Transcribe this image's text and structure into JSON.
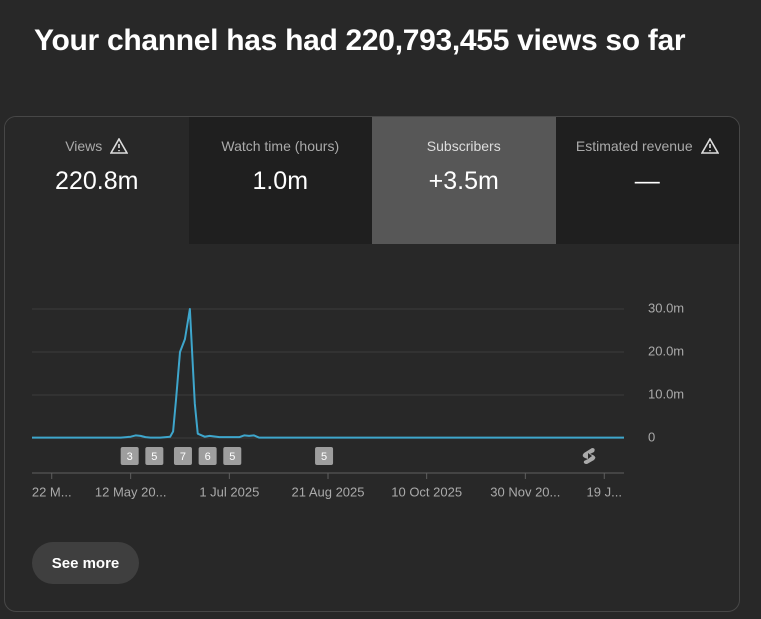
{
  "header": {
    "title": "Your channel has had 220,793,455 views so far"
  },
  "tabs": [
    {
      "label": "Views",
      "value": "220.8m"
    },
    {
      "label": "Watch time (hours)",
      "value": "1.0m"
    },
    {
      "label": "Subscribers",
      "value": "+3.5m"
    },
    {
      "label": "Estimated revenue",
      "value": "—"
    }
  ],
  "chart_data": {
    "type": "line",
    "x": [
      0,
      1,
      2,
      3,
      4,
      5,
      6,
      7,
      8,
      9,
      10,
      10.5,
      11,
      11.5,
      12,
      13,
      14,
      14.3,
      14.6,
      15,
      15.5,
      16,
      16.5,
      16.8,
      17.5,
      18,
      19,
      20,
      21,
      21.5,
      22,
      22.5,
      23,
      24,
      25,
      26,
      27,
      28,
      29,
      30,
      31,
      32,
      33,
      34,
      35,
      36,
      37,
      38,
      39,
      40,
      41,
      42,
      43,
      44,
      45,
      46,
      47,
      48,
      49,
      50,
      51,
      52,
      53,
      54,
      55,
      56,
      57,
      58,
      59,
      60
    ],
    "series": [
      {
        "color": "#3ea6cc",
        "values": [
          0.1,
          0.1,
          0.1,
          0.1,
          0.1,
          0.1,
          0.1,
          0.1,
          0.1,
          0.1,
          0.3,
          0.6,
          0.5,
          0.2,
          0.1,
          0.1,
          0.3,
          1.5,
          9,
          20,
          23,
          30,
          8,
          1,
          0.3,
          0.5,
          0.2,
          0.2,
          0.2,
          0.6,
          0.5,
          0.6,
          0.1,
          0.1,
          0.1,
          0.1,
          0.1,
          0.1,
          0.1,
          0.1,
          0.1,
          0.1,
          0.1,
          0.1,
          0.1,
          0.1,
          0.1,
          0.1,
          0.1,
          0.1,
          0.1,
          0.1,
          0.1,
          0.1,
          0.1,
          0.1,
          0.1,
          0.1,
          0.1,
          0.1,
          0.1,
          0.1,
          0.1,
          0.1,
          0.1,
          0.1,
          0.1,
          0.1,
          0.1,
          0.1
        ]
      }
    ],
    "xlim": [
      0,
      60
    ],
    "xticks": [
      {
        "value": 2,
        "label": "22 M..."
      },
      {
        "value": 10,
        "label": "12 May 20..."
      },
      {
        "value": 20,
        "label": "1 Jul 2025"
      },
      {
        "value": 30,
        "label": "21 Aug 2025"
      },
      {
        "value": 40,
        "label": "10 Oct 2025"
      },
      {
        "value": 50,
        "label": "30 Nov 20..."
      },
      {
        "value": 58,
        "label": "19 J..."
      }
    ],
    "ylim": [
      0,
      30
    ],
    "yticks": [
      0,
      {
        "value": 10,
        "label": "10.0m"
      },
      {
        "value": 20,
        "label": "20.0m"
      },
      {
        "value": 30,
        "label": "30.0m"
      }
    ],
    "grid": true,
    "annotations": [
      {
        "x": 9.9,
        "label": "3"
      },
      {
        "x": 12.4,
        "label": "5"
      },
      {
        "x": 15.3,
        "label": "7"
      },
      {
        "x": 17.8,
        "label": "6"
      },
      {
        "x": 20.3,
        "label": "5"
      },
      {
        "x": 29.6,
        "label": "5"
      }
    ]
  },
  "button": {
    "label": "See more"
  }
}
